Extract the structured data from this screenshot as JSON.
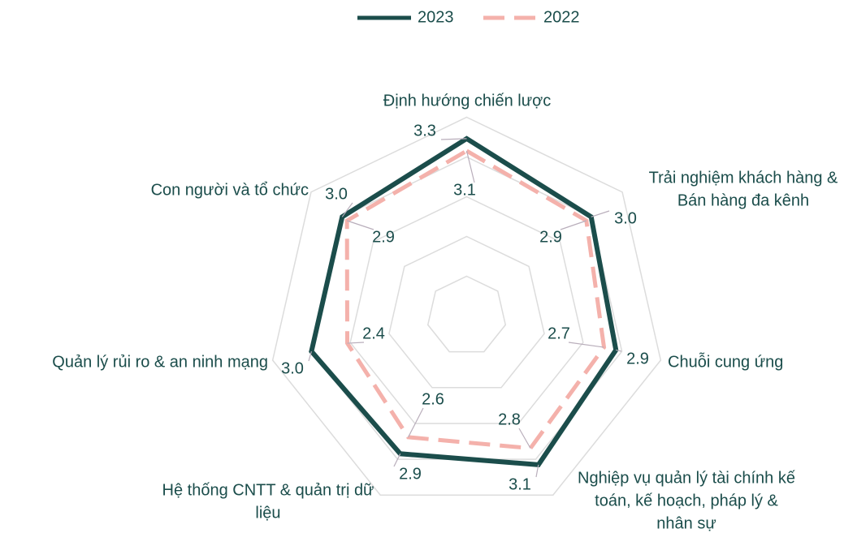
{
  "chart_data": {
    "type": "radar",
    "categories": [
      [
        "Định hướng chiến lược"
      ],
      [
        "Trải nghiệm khách hàng &",
        "Bán hàng đa kênh"
      ],
      [
        "Chuỗi cung ứng"
      ],
      [
        "Nghiệp vụ quản lý tài chính kế",
        "toán, kế hoạch, pháp lý &",
        "nhân sự"
      ],
      [
        "Hệ thống CNTT & quản trị dữ",
        "liệu"
      ],
      [
        "Quản lý rủi ro & an ninh mạng"
      ],
      [
        "Con người và tổ chức"
      ]
    ],
    "series": [
      {
        "name": "2023",
        "color": "#1b4d4b",
        "dash": false,
        "values": [
          3.3,
          3.0,
          2.9,
          3.1,
          2.9,
          3.0,
          3.0
        ],
        "value_labels": [
          "3.3",
          "3.0",
          "2.9",
          "3.1",
          "2.9",
          "3.0",
          "3.0"
        ]
      },
      {
        "name": "2022",
        "color": "#f4b1ab",
        "dash": true,
        "values": [
          3.1,
          2.9,
          2.7,
          2.8,
          2.6,
          2.4,
          2.9
        ],
        "value_labels": [
          "3.1",
          "2.9",
          "2.7",
          "2.8",
          "2.6",
          "2.4",
          "2.9"
        ]
      }
    ],
    "rlim": [
      0.4,
      3.65
    ],
    "rticks": [
      1.05,
      1.7,
      2.35,
      3.0,
      3.65
    ],
    "grid": true,
    "legend": "top"
  }
}
